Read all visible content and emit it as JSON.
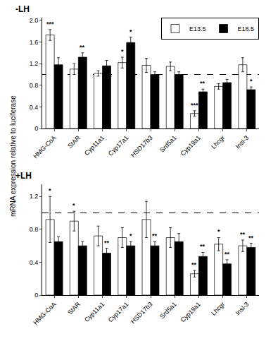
{
  "chart_data": [
    {
      "type": "bar",
      "title": "-LH",
      "ylabel": "mRNA expression relative to luciferase",
      "categories": [
        "HMG-CoA",
        "StAR",
        "Cyp11a1",
        "Cyp17a1",
        "HSD17b3",
        "Srd5a1",
        "Cyp19a1",
        "Lhcgr",
        "Insl-3"
      ],
      "series": [
        {
          "name": "E13.5",
          "color": "white",
          "values": [
            1.73,
            1.1,
            1.02,
            1.22,
            1.17,
            1.15,
            0.28,
            0.78,
            1.18
          ],
          "errors": [
            0.1,
            0.1,
            0.05,
            0.1,
            0.13,
            0.08,
            0.05,
            0.05,
            0.13
          ],
          "significance": [
            "***",
            null,
            null,
            "*",
            null,
            null,
            "***",
            null,
            null
          ]
        },
        {
          "name": "E18.5",
          "color": "black",
          "values": [
            1.18,
            1.32,
            1.16,
            1.59,
            1.0,
            1.0,
            0.68,
            0.85,
            0.72
          ],
          "errors": [
            0.13,
            0.08,
            0.1,
            0.1,
            0.05,
            0.05,
            0.05,
            0.06,
            0.05
          ],
          "significance": [
            null,
            "**",
            null,
            "*",
            null,
            null,
            "**",
            null,
            "*"
          ]
        }
      ],
      "edge_color": "black",
      "reference_line": 1.0,
      "ylim": [
        0,
        2.05
      ],
      "yticks": [
        0,
        0.4,
        0.8,
        1.2,
        1.6,
        {
          "value": 2.0,
          "label": "2.0"
        }
      ],
      "grid": false,
      "legend": "upper right"
    },
    {
      "type": "bar",
      "title": "+LH",
      "categories": [
        "HMG-CoA",
        "StAR",
        "Cyp11a1",
        "Cyp17a1",
        "HSD17b3",
        "Srd5a1",
        "Cyp19a1",
        "Lhcgr",
        "Insl-3"
      ],
      "series": [
        {
          "name": "E13.5",
          "color": "white",
          "values": [
            0.92,
            0.9,
            0.72,
            0.7,
            0.92,
            0.7,
            0.26,
            0.62,
            0.6
          ],
          "errors": [
            0.28,
            0.12,
            0.12,
            0.12,
            0.22,
            0.12,
            0.04,
            0.08,
            0.07
          ],
          "significance": [
            "*",
            "*",
            null,
            null,
            null,
            null,
            "**",
            "*",
            "**"
          ]
        },
        {
          "name": "E18.5",
          "color": "black",
          "values": [
            0.65,
            0.6,
            0.51,
            0.6,
            0.6,
            0.65,
            0.47,
            0.38,
            0.58
          ],
          "errors": [
            0.06,
            0.05,
            0.06,
            0.05,
            0.05,
            0.1,
            0.05,
            0.05,
            0.05
          ],
          "significance": [
            null,
            null,
            "**",
            "*",
            "**",
            null,
            "**",
            "**",
            "**"
          ]
        }
      ],
      "edge_color": "black",
      "reference_line": 1.0,
      "ylim": [
        0,
        1.35
      ],
      "yticks": [
        0,
        0.4,
        0.8,
        1.2
      ],
      "grid": false
    }
  ]
}
